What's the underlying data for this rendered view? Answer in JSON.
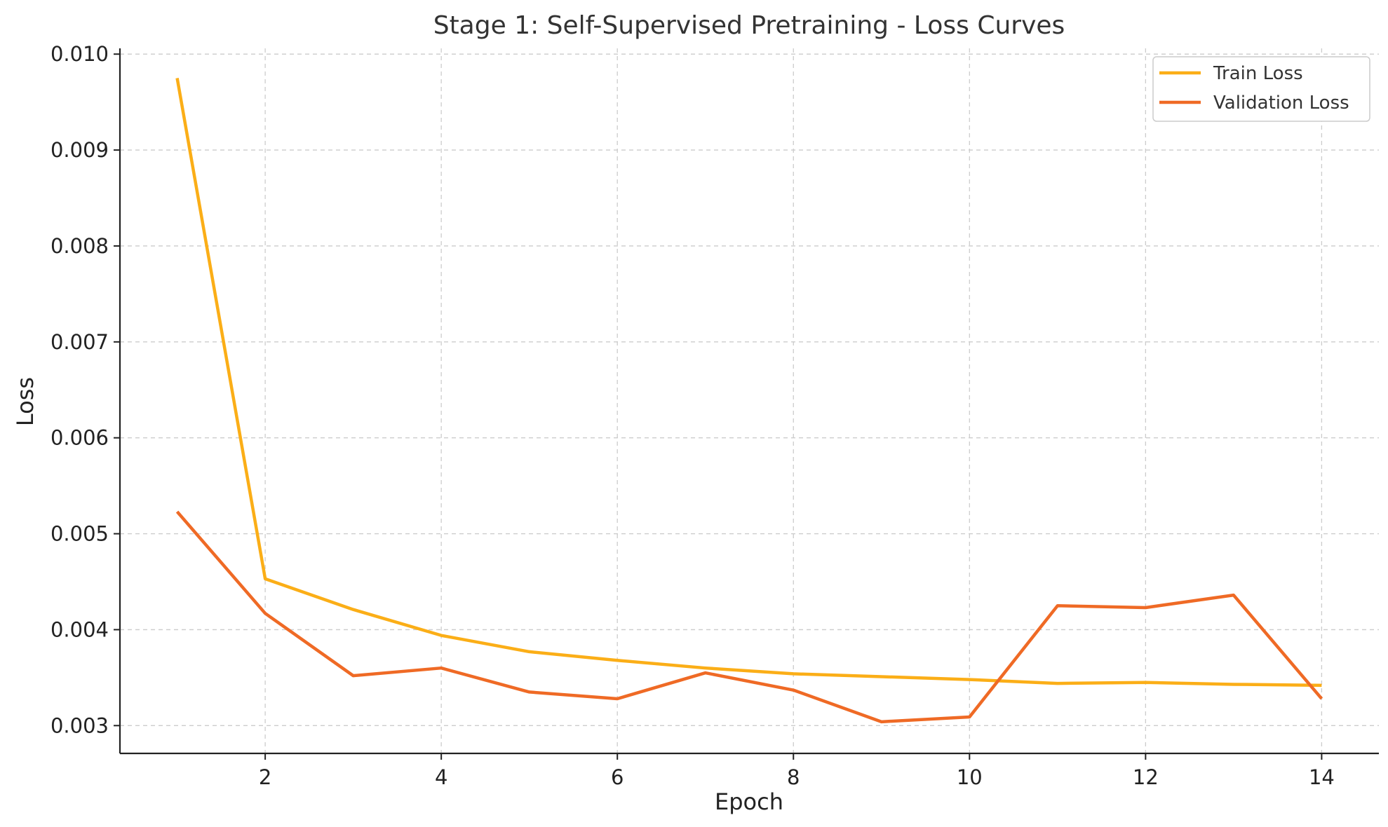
{
  "chart_data": {
    "type": "line",
    "title": "Stage 1: Self-Supervised Pretraining - Loss Curves",
    "xlabel": "Epoch",
    "ylabel": "Loss",
    "x": [
      1,
      2,
      3,
      4,
      5,
      6,
      7,
      8,
      9,
      10,
      11,
      12,
      13,
      14
    ],
    "xlim": [
      0.35,
      14.65
    ],
    "ylim": [
      0.00271,
      0.01006
    ],
    "xticks": [
      2,
      4,
      6,
      8,
      10,
      12,
      14
    ],
    "xtick_labels": [
      "2",
      "4",
      "6",
      "8",
      "10",
      "12",
      "14"
    ],
    "yticks": [
      0.003,
      0.004,
      0.005,
      0.006,
      0.007,
      0.008,
      0.009,
      0.01
    ],
    "ytick_labels": [
      "0.003",
      "0.004",
      "0.005",
      "0.006",
      "0.007",
      "0.008",
      "0.009",
      "0.010"
    ],
    "grid": true,
    "legend_position": "top-right",
    "series": [
      {
        "name": "Train Loss",
        "color": "#FBAE17",
        "values": [
          0.00975,
          0.00453,
          0.00421,
          0.00394,
          0.00377,
          0.00368,
          0.0036,
          0.00354,
          0.00351,
          0.00348,
          0.00344,
          0.00345,
          0.00343,
          0.00342
        ]
      },
      {
        "name": "Validation Loss",
        "color": "#EF6A25",
        "values": [
          0.00523,
          0.00417,
          0.00352,
          0.0036,
          0.00335,
          0.00328,
          0.00355,
          0.00337,
          0.00304,
          0.00309,
          0.00425,
          0.00423,
          0.00436,
          0.00328
        ]
      }
    ]
  }
}
